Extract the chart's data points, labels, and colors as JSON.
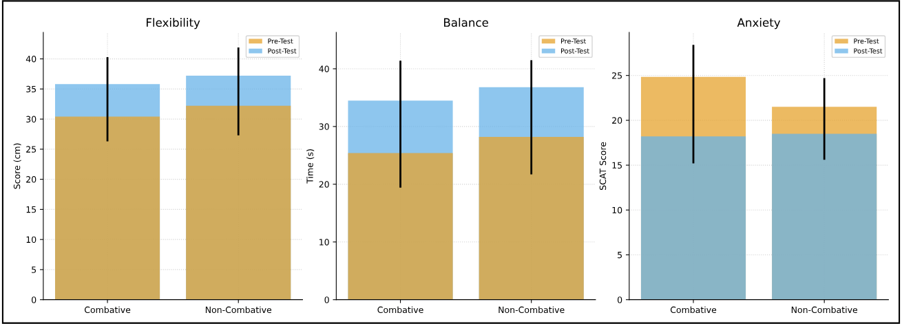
{
  "chart_data": [
    {
      "type": "bar",
      "title": "Flexibility",
      "ylabel": "Score (cm)",
      "categories": [
        "Combative",
        "Non-Combative"
      ],
      "ylim": [
        0,
        44.4
      ],
      "yticks": [
        0,
        5,
        10,
        15,
        20,
        25,
        30,
        35,
        40
      ],
      "grid": true,
      "legend": "top right",
      "series": [
        {
          "name": "Pre-Test",
          "color": "#e6a32e",
          "values": [
            30.4,
            32.2
          ],
          "errors": [
            [
              26.3,
              40.3
            ],
            [
              27.3,
              41.9
            ]
          ]
        },
        {
          "name": "Post-Test",
          "color": "#68b3e8",
          "values": [
            35.8,
            37.2
          ]
        }
      ]
    },
    {
      "type": "bar",
      "title": "Balance",
      "ylabel": "Time (s)",
      "categories": [
        "Combative",
        "Non-Combative"
      ],
      "ylim": [
        0,
        46.3
      ],
      "yticks": [
        0,
        10,
        20,
        30,
        40
      ],
      "grid": true,
      "legend": "top right",
      "series": [
        {
          "name": "Pre-Test",
          "color": "#e6a32e",
          "values": [
            25.4,
            28.2
          ],
          "errors": [
            [
              19.4,
              41.4
            ],
            [
              21.7,
              41.5
            ]
          ]
        },
        {
          "name": "Post-Test",
          "color": "#68b3e8",
          "values": [
            34.5,
            36.8
          ]
        }
      ]
    },
    {
      "type": "bar",
      "title": "Anxiety",
      "ylabel": "SCAT Score",
      "categories": [
        "Combative",
        "Non-Combative"
      ],
      "ylim": [
        0,
        29.8
      ],
      "yticks": [
        0,
        5,
        10,
        15,
        20,
        25
      ],
      "grid": true,
      "legend": "top right",
      "series": [
        {
          "name": "Pre-Test",
          "color": "#e6a32e",
          "values": [
            24.85,
            21.5
          ],
          "errors": [
            [
              15.2,
              28.4
            ],
            [
              15.6,
              24.7
            ]
          ]
        },
        {
          "name": "Post-Test",
          "color": "#68b3e8",
          "values": [
            18.2,
            18.5
          ]
        }
      ]
    }
  ]
}
